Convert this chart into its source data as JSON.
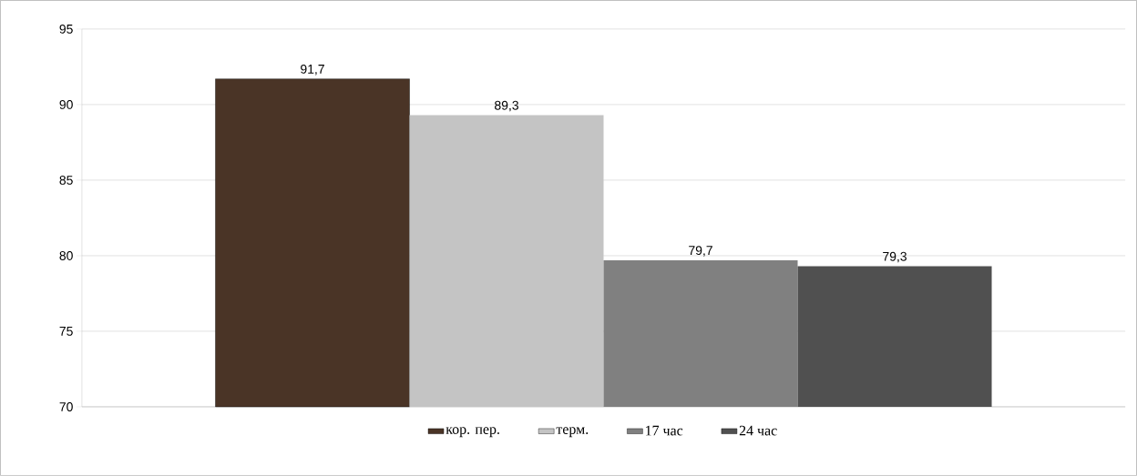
{
  "chart_data": {
    "type": "bar",
    "categories": [
      null
    ],
    "series": [
      {
        "name": "кор. пер.",
        "color": "#4a3426",
        "values": [
          91.7
        ],
        "value_labels": [
          "91,7"
        ]
      },
      {
        "name": "терм.",
        "color": "#c4c4c4",
        "values": [
          89.3
        ],
        "value_labels": [
          "89,3"
        ]
      },
      {
        "name": "17 час",
        "color": "#808080",
        "values": [
          79.7
        ],
        "value_labels": [
          "79,7"
        ]
      },
      {
        "name": "24 час",
        "color": "#505050",
        "values": [
          79.3
        ],
        "value_labels": [
          "79,3"
        ]
      }
    ],
    "ylim": [
      70,
      95
    ],
    "yticks": [
      70,
      75,
      80,
      85,
      90,
      95
    ],
    "grid": "y",
    "legend": "bottom"
  }
}
